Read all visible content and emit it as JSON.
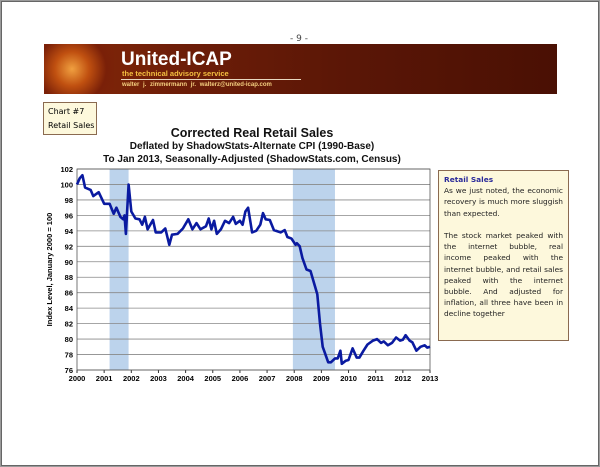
{
  "page_number": "- 9 -",
  "header": {
    "brand": "United-ICAP",
    "tagline": "the technical advisory service",
    "contact": "walter j. zimmermann jr.   walterz@united-icap.com"
  },
  "chart_label": {
    "line1": "Chart #7",
    "line2": "Retail Sales"
  },
  "note": {
    "title": "Retail Sales",
    "p1": "As we just noted, the economic recovery is much more sluggish than expected.",
    "p2": "The stock market peaked with the internet bubble, real income peaked with the internet bubble, and retail sales peaked with the internet bubble. And adjusted for inflation, all three have been in decline together"
  },
  "colors": {
    "line": "#0a1aa0",
    "recession": "#bcd3ec",
    "banner": "#6e1e08",
    "note_bg": "#fdf8dc"
  },
  "chart_data": {
    "type": "line",
    "title": "Corrected Real Retail Sales",
    "subtitle1": "Deflated by ShadowStats-Alternate CPI (1990-Base)",
    "subtitle2": "To Jan 2013, Seasonally-Adjusted (ShadowStats.com, Census)",
    "ylabel": "Index Level, January 2000 = 100",
    "xlim": [
      2000,
      2013
    ],
    "ylim": [
      76,
      102
    ],
    "xticks": [
      "2000",
      "2001",
      "2002",
      "2003",
      "2004",
      "2005",
      "2006",
      "2007",
      "2008",
      "2009",
      "2010",
      "2011",
      "2012",
      "2013"
    ],
    "yticks": [
      "76",
      "78",
      "80",
      "82",
      "84",
      "86",
      "88",
      "90",
      "92",
      "94",
      "96",
      "98",
      "100",
      "102"
    ],
    "grid": true,
    "recessions": [
      [
        2001.2,
        2001.9
      ],
      [
        2007.95,
        2009.5
      ]
    ],
    "x": [
      2000.0,
      2000.1,
      2000.2,
      2000.3,
      2000.5,
      2000.6,
      2000.8,
      2001.0,
      2001.2,
      2001.35,
      2001.45,
      2001.6,
      2001.7,
      2001.75,
      2001.8,
      2001.9,
      2002.0,
      2002.15,
      2002.3,
      2002.4,
      2002.5,
      2002.6,
      2002.8,
      2002.9,
      2003.1,
      2003.25,
      2003.4,
      2003.5,
      2003.7,
      2003.9,
      2004.1,
      2004.25,
      2004.4,
      2004.55,
      2004.75,
      2004.85,
      2004.95,
      2005.05,
      2005.15,
      2005.3,
      2005.45,
      2005.6,
      2005.75,
      2005.85,
      2006.0,
      2006.1,
      2006.2,
      2006.3,
      2006.45,
      2006.6,
      2006.75,
      2006.85,
      2006.95,
      2007.1,
      2007.25,
      2007.5,
      2007.65,
      2007.75,
      2007.9,
      2008.05,
      2008.1,
      2008.2,
      2008.3,
      2008.45,
      2008.6,
      2008.75,
      2008.85,
      2008.95,
      2009.05,
      2009.1,
      2009.25,
      2009.35,
      2009.5,
      2009.6,
      2009.7,
      2009.75,
      2009.9,
      2010.0,
      2010.15,
      2010.3,
      2010.4,
      2010.55,
      2010.7,
      2010.9,
      2011.05,
      2011.2,
      2011.3,
      2011.45,
      2011.6,
      2011.75,
      2011.9,
      2012.0,
      2012.1,
      2012.25,
      2012.35,
      2012.5,
      2012.65,
      2012.8,
      2012.9,
      2013.0
    ],
    "values": [
      100,
      100.8,
      101.2,
      99.6,
      99.3,
      98.5,
      99.0,
      97.5,
      97.5,
      96.2,
      97.0,
      95.8,
      95.5,
      96.0,
      93.6,
      100.0,
      96.5,
      95.6,
      95.5,
      94.8,
      95.8,
      94.2,
      95.4,
      93.8,
      93.8,
      94.3,
      92.2,
      93.5,
      93.6,
      94.3,
      95.5,
      94.2,
      95.0,
      94.2,
      94.6,
      95.6,
      94.2,
      95.3,
      93.6,
      94.2,
      95.3,
      95.0,
      95.8,
      94.9,
      95.3,
      94.8,
      96.5,
      97.0,
      93.8,
      94.0,
      94.8,
      96.3,
      95.5,
      95.4,
      94.1,
      93.8,
      94.1,
      93.2,
      93.0,
      92.2,
      92.4,
      92.0,
      90.5,
      89.0,
      88.8,
      87.0,
      85.8,
      82.0,
      79.0,
      78.5,
      77.0,
      77.0,
      77.5,
      77.5,
      78.5,
      76.8,
      77.2,
      77.3,
      78.8,
      77.6,
      77.6,
      78.5,
      79.3,
      79.8,
      80.0,
      79.5,
      79.7,
      79.2,
      79.5,
      80.2,
      79.8,
      79.9,
      80.5,
      79.8,
      79.6,
      78.5,
      79.0,
      79.2,
      78.9,
      79.0
    ]
  }
}
